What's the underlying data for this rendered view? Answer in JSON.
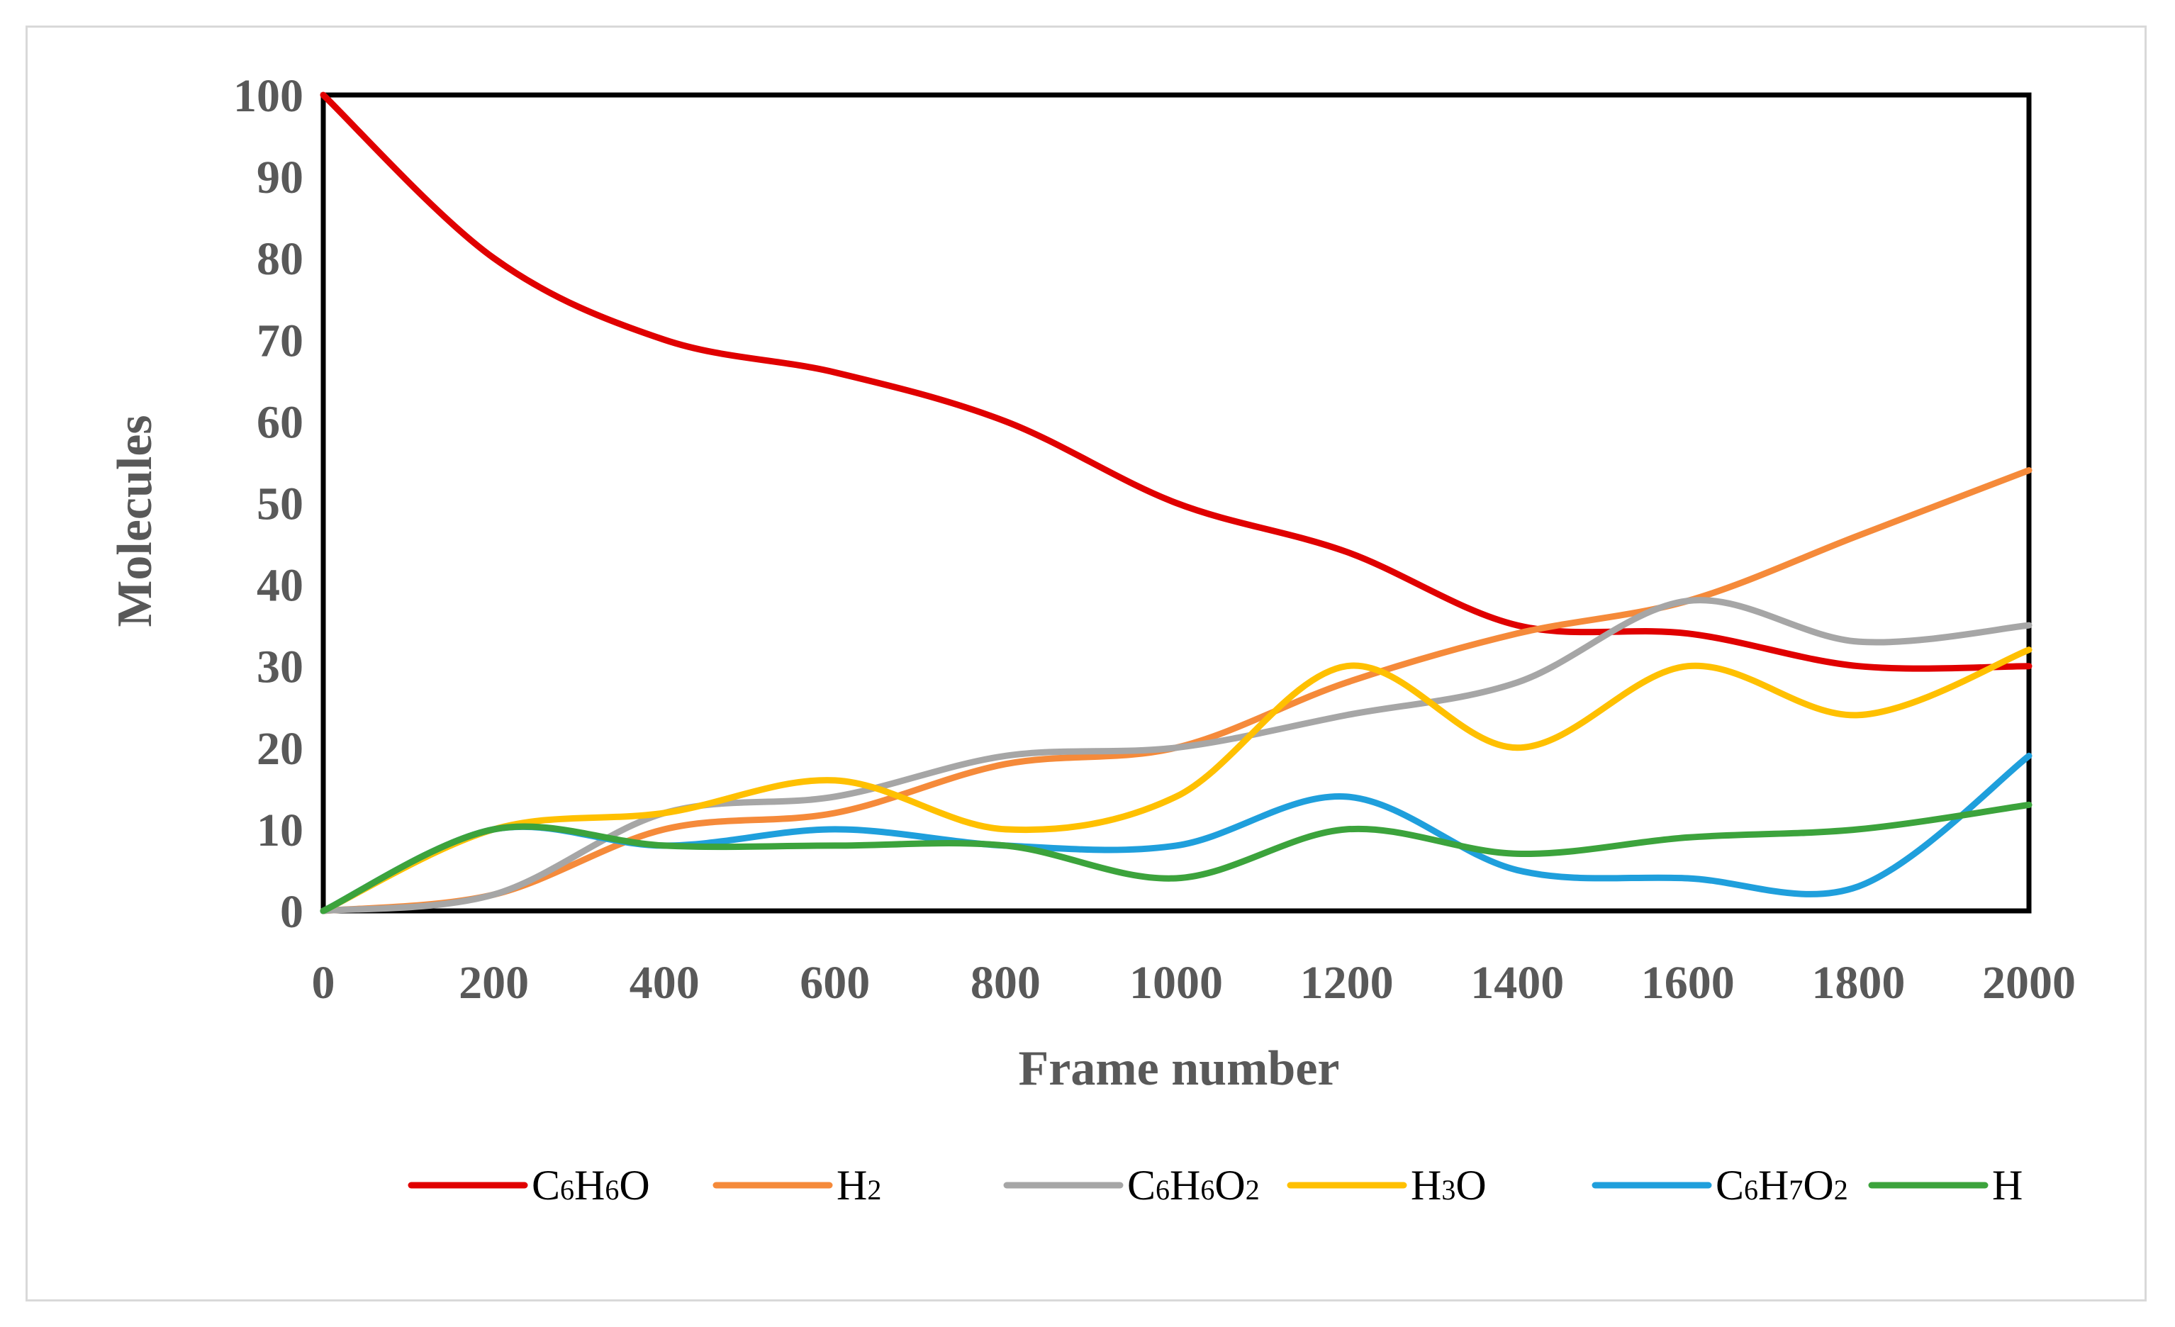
{
  "chart_data": {
    "type": "line",
    "title": "",
    "xlabel": "Frame number",
    "ylabel": "Molecules",
    "x": [
      0,
      200,
      400,
      600,
      800,
      1000,
      1200,
      1400,
      1600,
      1800,
      2000
    ],
    "xlim": [
      0,
      2000
    ],
    "ylim": [
      0,
      100
    ],
    "xticks": [
      "0",
      "200",
      "400",
      "600",
      "800",
      "1000",
      "1200",
      "1400",
      "1600",
      "1800",
      "2000"
    ],
    "yticks": [
      "0",
      "10",
      "20",
      "30",
      "40",
      "50",
      "60",
      "70",
      "80",
      "90",
      "100"
    ],
    "grid": false,
    "legend_position": "bottom",
    "series": [
      {
        "name": "C6H6O",
        "base": "C",
        "sub1": "6",
        "mid": "H",
        "sub2": "6",
        "tail": "O",
        "sub3": "",
        "color": "#e00000",
        "values": [
          100,
          80,
          70,
          66,
          60,
          50,
          44,
          35,
          34,
          30,
          30
        ]
      },
      {
        "name": "H2",
        "base": "H",
        "sub1": "2",
        "mid": "",
        "sub2": "",
        "tail": "",
        "sub3": "",
        "color": "#f58a3a",
        "values": [
          0,
          2,
          10,
          12,
          18,
          20,
          28,
          34,
          38,
          46,
          54
        ]
      },
      {
        "name": "C6H6O2",
        "base": "C",
        "sub1": "6",
        "mid": "H",
        "sub2": "6",
        "tail": "O",
        "sub3": "2",
        "color": "#a6a6a6",
        "values": [
          0,
          2,
          12,
          14,
          19,
          20,
          24,
          28,
          38,
          33,
          35
        ]
      },
      {
        "name": "H3O",
        "base": "H",
        "sub1": "3",
        "mid": "O",
        "sub2": "",
        "tail": "",
        "sub3": "",
        "color": "#ffc000",
        "values": [
          0,
          10,
          12,
          16,
          10,
          14,
          30,
          20,
          30,
          24,
          32
        ]
      },
      {
        "name": "C6H7O2",
        "base": "C",
        "sub1": "6",
        "mid": "H",
        "sub2": "7",
        "tail": "O",
        "sub3": "2",
        "color": "#1f9fdc",
        "values": [
          0,
          10,
          8,
          10,
          8,
          8,
          14,
          5,
          4,
          3,
          19
        ]
      },
      {
        "name": "H",
        "base": "H",
        "sub1": "",
        "mid": "",
        "sub2": "",
        "tail": "",
        "sub3": "",
        "color": "#3ca33c",
        "values": [
          0,
          10,
          8,
          8,
          8,
          4,
          10,
          7,
          9,
          10,
          13
        ]
      }
    ]
  }
}
